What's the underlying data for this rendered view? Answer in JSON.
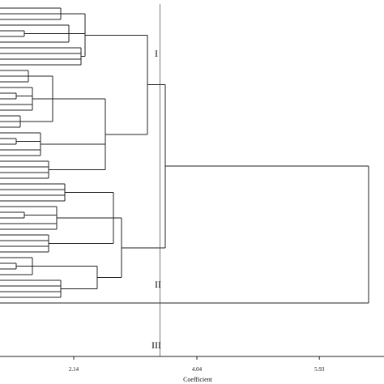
{
  "dendrogram": {
    "axis": {
      "label": "Coefficient",
      "ticks": [
        {
          "value": 2.14,
          "text": "2.14"
        },
        {
          "value": 4.04,
          "text": "4.04"
        },
        {
          "value": 5.93,
          "text": "5.93"
        }
      ],
      "range": [
        0.25,
        7.9
      ]
    },
    "cut_value": 3.47,
    "clusters": [
      {
        "label": "I"
      },
      {
        "label": "II"
      },
      {
        "label": "III"
      }
    ],
    "colors": {
      "line": "#222222",
      "background": "#ffffff"
    }
  }
}
